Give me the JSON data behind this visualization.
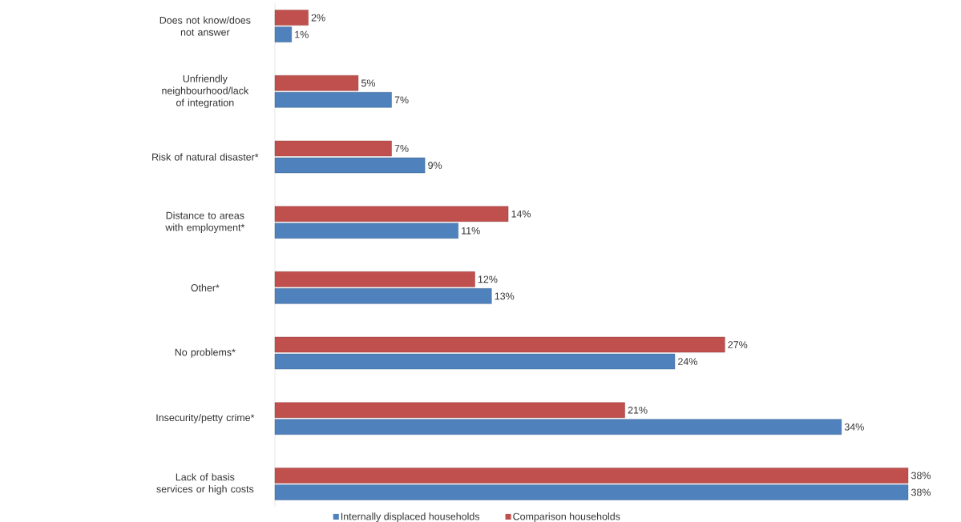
{
  "chart_data": {
    "type": "bar",
    "orientation": "horizontal",
    "legend": "bottom",
    "categories": [
      "Does not know/does not answer",
      "Unfriendly neighbourhood/lack of integration",
      "Risk of natural disaster*",
      "Distance to areas with employment*",
      "Other*",
      "No problems*",
      "Insecurity/petty crime*",
      "Lack of basis services or high costs"
    ],
    "series": [
      {
        "name": "Internally displaced households",
        "color": "#4f81bd",
        "values": [
          1,
          7,
          9,
          11,
          13,
          24,
          34,
          38
        ],
        "value_labels": [
          "1%",
          "7%",
          "9%",
          "11%",
          "13%",
          "24%",
          "34%",
          "38%"
        ]
      },
      {
        "name": "Comparison households",
        "color": "#c0504d",
        "values": [
          2,
          5,
          7,
          14,
          12,
          27,
          21,
          38
        ],
        "value_labels": [
          "2%",
          "5%",
          "7%",
          "14%",
          "12%",
          "27%",
          "21%",
          "38%"
        ]
      }
    ]
  }
}
